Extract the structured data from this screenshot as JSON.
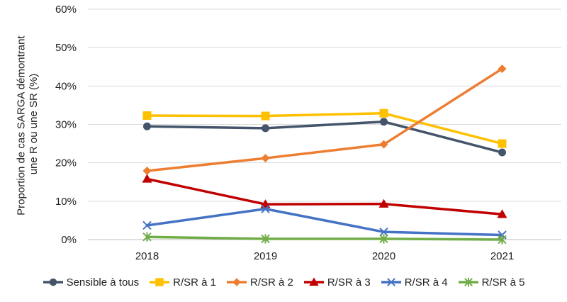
{
  "chart_data": {
    "type": "line",
    "title": "",
    "xlabel": "",
    "ylabel": "Proportion de cas SARGA démontrant une R ou une SR (%)",
    "ylabel_lines": [
      "Proportion de cas SARGA démontrant",
      "une R ou une SR (%)"
    ],
    "categories": [
      "2018",
      "2019",
      "2020",
      "2021"
    ],
    "ylim": [
      0,
      60
    ],
    "yticks": [
      0,
      10,
      20,
      30,
      40,
      50,
      60
    ],
    "ytick_labels": [
      "0%",
      "10%",
      "20%",
      "30%",
      "40%",
      "50%",
      "60%"
    ],
    "grid": true,
    "legend_position": "bottom",
    "series": [
      {
        "name": "Sensible à tous",
        "values": [
          29.5,
          29.0,
          30.7,
          22.7
        ],
        "color": "#44546a",
        "marker": "circle"
      },
      {
        "name": "R/SR à 1",
        "values": [
          32.3,
          32.2,
          32.9,
          25.0
        ],
        "color": "#ffc000",
        "marker": "square"
      },
      {
        "name": "R/SR à 2",
        "values": [
          17.9,
          21.2,
          24.8,
          44.5
        ],
        "color": "#ed7d31",
        "marker": "diamond"
      },
      {
        "name": "R/SR à 3",
        "values": [
          15.8,
          9.2,
          9.3,
          6.6
        ],
        "color": "#c00000",
        "marker": "triangle"
      },
      {
        "name": "R/SR à 4",
        "values": [
          3.7,
          8.0,
          2.0,
          1.2
        ],
        "color": "#4472c4",
        "marker": "x"
      },
      {
        "name": "R/SR à 5",
        "values": [
          0.7,
          0.2,
          0.2,
          0.0
        ],
        "color": "#70ad47",
        "marker": "star"
      }
    ]
  }
}
